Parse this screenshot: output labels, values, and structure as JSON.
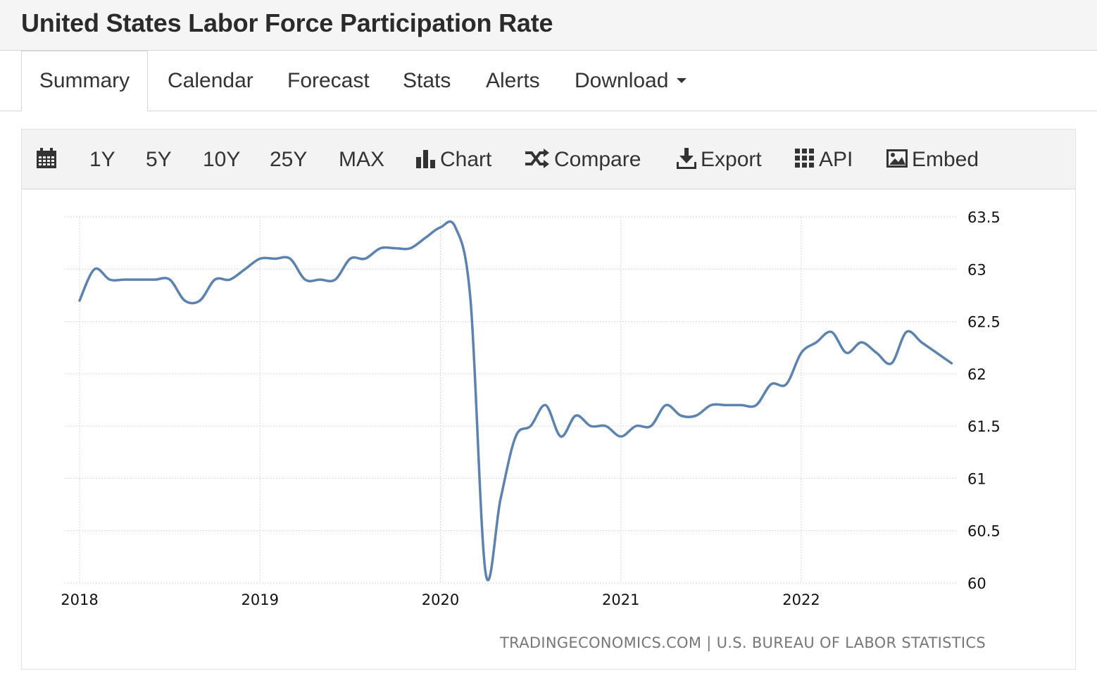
{
  "page": {
    "title": "United States Labor Force Participation Rate"
  },
  "tabs": [
    {
      "label": "Summary",
      "active": true
    },
    {
      "label": "Calendar",
      "active": false
    },
    {
      "label": "Forecast",
      "active": false
    },
    {
      "label": "Stats",
      "active": false
    },
    {
      "label": "Alerts",
      "active": false
    },
    {
      "label": "Download",
      "active": false
    }
  ],
  "toolbar": {
    "calendar_icon": "calendar-icon",
    "ranges": [
      "1Y",
      "5Y",
      "10Y",
      "25Y",
      "MAX"
    ],
    "chart_label": "Chart",
    "compare_label": "Compare",
    "export_label": "Export",
    "api_label": "API",
    "embed_label": "Embed"
  },
  "colors": {
    "line": "#5b82b0",
    "grid": "#d9d9d9"
  },
  "chart_data": {
    "type": "line",
    "title": "United States Labor Force Participation Rate",
    "xlabel": "",
    "ylabel": "",
    "x_ticks": [
      "2018",
      "2019",
      "2020",
      "2021",
      "2022"
    ],
    "y_ticks": [
      60,
      60.5,
      61,
      61.5,
      62,
      62.5,
      63,
      63.5
    ],
    "ylim": [
      60,
      63.5
    ],
    "xlim": [
      2018.0,
      2022.95
    ],
    "grid": true,
    "legend": "none",
    "series": [
      {
        "name": "Labor Force Participation Rate",
        "x": [
          2018.0,
          2018.083,
          2018.167,
          2018.25,
          2018.333,
          2018.417,
          2018.5,
          2018.583,
          2018.667,
          2018.75,
          2018.833,
          2018.917,
          2019.0,
          2019.083,
          2019.167,
          2019.25,
          2019.333,
          2019.417,
          2019.5,
          2019.583,
          2019.667,
          2019.75,
          2019.833,
          2019.917,
          2020.0,
          2020.083,
          2020.167,
          2020.25,
          2020.333,
          2020.417,
          2020.5,
          2020.583,
          2020.667,
          2020.75,
          2020.833,
          2020.917,
          2021.0,
          2021.083,
          2021.167,
          2021.25,
          2021.333,
          2021.417,
          2021.5,
          2021.583,
          2021.667,
          2021.75,
          2021.833,
          2021.917,
          2022.0,
          2022.083,
          2022.167,
          2022.25,
          2022.333,
          2022.417,
          2022.5,
          2022.583,
          2022.667,
          2022.75,
          2022.833
        ],
        "values": [
          62.7,
          63.0,
          62.9,
          62.9,
          62.9,
          62.9,
          62.9,
          62.7,
          62.7,
          62.9,
          62.9,
          63.0,
          63.1,
          63.1,
          63.1,
          62.9,
          62.9,
          62.9,
          63.1,
          63.1,
          63.2,
          63.2,
          63.2,
          63.3,
          63.4,
          63.4,
          62.7,
          60.1,
          60.8,
          61.4,
          61.5,
          61.7,
          61.4,
          61.6,
          61.5,
          61.5,
          61.4,
          61.5,
          61.5,
          61.7,
          61.6,
          61.6,
          61.7,
          61.7,
          61.7,
          61.7,
          61.9,
          61.9,
          62.2,
          62.3,
          62.4,
          62.2,
          62.3,
          62.2,
          62.1,
          62.4,
          62.3,
          62.2,
          62.1
        ]
      }
    ]
  },
  "source": {
    "text": "TRADINGECONOMICS.COM | U.S. BUREAU OF LABOR STATISTICS"
  }
}
